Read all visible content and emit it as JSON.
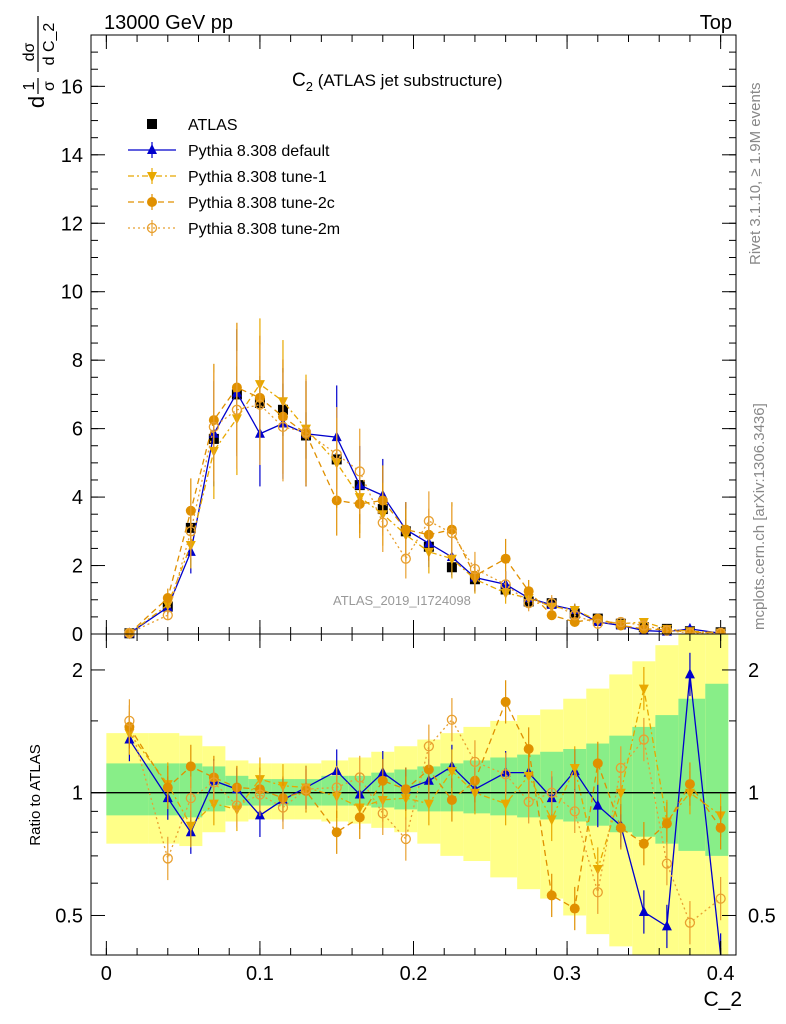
{
  "header": {
    "left": "13000 GeV pp",
    "right": "Top",
    "plot_title": "C",
    "plot_title_sub": "2",
    "plot_title_rest": " (ATLAS jet substructure)"
  },
  "side_text": {
    "rivet": "Rivet 3.1.10, ≥ 1.9M events",
    "mcplots": "mcplots.cern.ch [arXiv:1306.3436]"
  },
  "watermark": "ATLAS_2019_I1724098",
  "axes": {
    "x_label": "C_2",
    "ratio_ylabel": "Ratio to ATLAS",
    "main_ylabel_parts": [
      "d",
      "1",
      "σ",
      "dσ",
      "d C_2"
    ]
  },
  "legend": [
    {
      "label": "ATLAS"
    },
    {
      "label": "Pythia 8.308 default"
    },
    {
      "label": "Pythia 8.308 tune-1"
    },
    {
      "label": "Pythia 8.308 tune-2c"
    },
    {
      "label": "Pythia 8.308 tune-2m"
    }
  ],
  "colors": {
    "data": "#000000",
    "default": "#0000cc",
    "tune1": "#e8a800",
    "tune2c": "#e09000",
    "tune2m": "#e8a030",
    "band_inner": "#88ee88",
    "band_outer": "#ffff88"
  },
  "chart_data": [
    {
      "type": "line",
      "panel": "main",
      "xlim": [
        -0.01,
        0.41
      ],
      "ylim": [
        0,
        17.5
      ],
      "x_ticks": [
        0,
        0.1,
        0.2,
        0.3,
        0.4
      ],
      "y_ticks": [
        0,
        2,
        4,
        6,
        8,
        10,
        12,
        14,
        16
      ],
      "x": [
        0.015,
        0.04,
        0.055,
        0.07,
        0.085,
        0.1,
        0.115,
        0.13,
        0.15,
        0.165,
        0.18,
        0.195,
        0.21,
        0.225,
        0.24,
        0.26,
        0.275,
        0.29,
        0.305,
        0.32,
        0.335,
        0.35,
        0.365,
        0.38,
        0.4
      ],
      "series": [
        {
          "name": "ATLAS",
          "values": [
            0.02,
            0.8,
            3.1,
            5.7,
            7.0,
            6.75,
            6.55,
            5.8,
            5.1,
            4.35,
            3.65,
            3.0,
            2.55,
            1.95,
            1.6,
            1.3,
            0.95,
            0.9,
            0.6,
            0.45,
            0.3,
            0.2,
            0.15,
            0.08,
            0.05
          ]
        },
        {
          "name": "Pythia 8.308 default",
          "values": [
            0.02,
            0.78,
            2.4,
            5.85,
            7.05,
            5.85,
            6.15,
            5.85,
            5.75,
            4.35,
            4.05,
            3.05,
            2.65,
            2.25,
            1.65,
            1.45,
            1.05,
            0.85,
            0.7,
            0.35,
            0.25,
            0.1,
            0.07,
            0.15,
            0.02
          ]
        },
        {
          "name": "Pythia 8.308 tune-1",
          "values": [
            0.02,
            0.85,
            2.6,
            5.35,
            6.3,
            7.3,
            6.8,
            6.0,
            5.0,
            4.0,
            3.5,
            2.9,
            2.4,
            2.2,
            1.6,
            1.2,
            1.05,
            0.8,
            0.7,
            0.4,
            0.3,
            0.35,
            0.15,
            0.08,
            0.04
          ]
        },
        {
          "name": "Pythia 8.308 tune-2c",
          "values": [
            0.02,
            1.05,
            3.6,
            6.25,
            7.2,
            6.9,
            6.35,
            5.85,
            3.9,
            3.8,
            3.9,
            3.05,
            2.9,
            3.05,
            1.7,
            2.2,
            1.25,
            0.55,
            0.35,
            0.45,
            0.25,
            0.15,
            0.12,
            0.05,
            0.04
          ]
        },
        {
          "name": "Pythia 8.308 tune-2m",
          "values": [
            0.03,
            0.55,
            3.0,
            6.05,
            6.55,
            6.7,
            6.05,
            5.9,
            5.25,
            4.75,
            3.25,
            2.2,
            3.3,
            2.95,
            1.9,
            1.45,
            0.9,
            0.9,
            0.55,
            0.3,
            0.35,
            0.25,
            0.1,
            0.03,
            0.03
          ]
        }
      ]
    },
    {
      "type": "line",
      "panel": "ratio",
      "ylim": [
        0.4,
        2.45
      ],
      "y_scale": "log",
      "y_ticks": [
        0.5,
        1,
        2
      ],
      "x_ticks": [
        0,
        0.1,
        0.2,
        0.3,
        0.4
      ],
      "x": [
        0.015,
        0.04,
        0.055,
        0.07,
        0.085,
        0.1,
        0.115,
        0.13,
        0.15,
        0.165,
        0.18,
        0.195,
        0.21,
        0.225,
        0.24,
        0.26,
        0.275,
        0.29,
        0.305,
        0.32,
        0.335,
        0.35,
        0.365,
        0.38,
        0.4
      ],
      "band_inner": [
        [
          0.88,
          1.18
        ],
        [
          0.88,
          1.18
        ],
        [
          0.87,
          1.18
        ],
        [
          0.9,
          1.16
        ],
        [
          0.93,
          1.1
        ],
        [
          0.93,
          1.08
        ],
        [
          0.93,
          1.08
        ],
        [
          0.93,
          1.08
        ],
        [
          0.93,
          1.1
        ],
        [
          0.93,
          1.1
        ],
        [
          0.92,
          1.12
        ],
        [
          0.91,
          1.14
        ],
        [
          0.9,
          1.16
        ],
        [
          0.9,
          1.18
        ],
        [
          0.89,
          1.2
        ],
        [
          0.88,
          1.22
        ],
        [
          0.87,
          1.24
        ],
        [
          0.86,
          1.26
        ],
        [
          0.85,
          1.28
        ],
        [
          0.83,
          1.32
        ],
        [
          0.8,
          1.38
        ],
        [
          0.78,
          1.45
        ],
        [
          0.75,
          1.55
        ],
        [
          0.72,
          1.7
        ],
        [
          0.7,
          1.85
        ]
      ],
      "band_outer": [
        [
          0.75,
          1.4
        ],
        [
          0.75,
          1.4
        ],
        [
          0.74,
          1.38
        ],
        [
          0.8,
          1.3
        ],
        [
          0.85,
          1.2
        ],
        [
          0.86,
          1.18
        ],
        [
          0.86,
          1.18
        ],
        [
          0.86,
          1.18
        ],
        [
          0.85,
          1.2
        ],
        [
          0.84,
          1.22
        ],
        [
          0.82,
          1.26
        ],
        [
          0.8,
          1.3
        ],
        [
          0.75,
          1.35
        ],
        [
          0.7,
          1.4
        ],
        [
          0.68,
          1.45
        ],
        [
          0.62,
          1.5
        ],
        [
          0.58,
          1.55
        ],
        [
          0.55,
          1.6
        ],
        [
          0.5,
          1.7
        ],
        [
          0.45,
          1.8
        ],
        [
          0.42,
          1.95
        ],
        [
          0.4,
          2.1
        ],
        [
          0.4,
          2.3
        ],
        [
          0.4,
          2.45
        ],
        [
          0.4,
          2.45
        ]
      ],
      "series": [
        {
          "name": "Pythia 8.308 default",
          "values": [
            1.35,
            0.97,
            0.8,
            1.07,
            1.02,
            0.88,
            0.96,
            1.03,
            1.13,
            0.99,
            1.12,
            1.02,
            1.07,
            1.16,
            1.02,
            1.12,
            1.12,
            0.97,
            1.13,
            0.93,
            0.83,
            0.51,
            0.47,
            1.95,
            0.4
          ]
        },
        {
          "name": "Pythia 8.308 tune-1",
          "values": [
            1.4,
            1.05,
            0.83,
            0.94,
            0.91,
            1.08,
            1.04,
            1.03,
            0.98,
            0.92,
            0.96,
            0.97,
            0.94,
            1.13,
            1.0,
            0.94,
            1.1,
            0.86,
            1.15,
            0.65,
            1.0,
            1.8,
            0.85,
            1.0,
            0.88
          ]
        },
        {
          "name": "Pythia 8.308 tune-2c",
          "values": [
            1.45,
            1.03,
            1.16,
            1.09,
            1.03,
            1.02,
            0.97,
            1.01,
            0.8,
            0.87,
            1.07,
            1.02,
            1.14,
            0.96,
            1.07,
            1.67,
            1.28,
            0.56,
            0.52,
            1.18,
            0.82,
            0.75,
            0.84,
            1.05,
            0.82
          ]
        },
        {
          "name": "Pythia 8.308 tune-2m",
          "values": [
            1.5,
            0.69,
            0.97,
            1.06,
            0.93,
            0.99,
            0.92,
            1.02,
            1.03,
            1.09,
            0.89,
            0.77,
            1.3,
            1.51,
            1.19,
            1.11,
            0.95,
            1.0,
            0.9,
            0.57,
            1.15,
            1.35,
            0.67,
            0.48,
            0.55
          ]
        }
      ]
    }
  ]
}
